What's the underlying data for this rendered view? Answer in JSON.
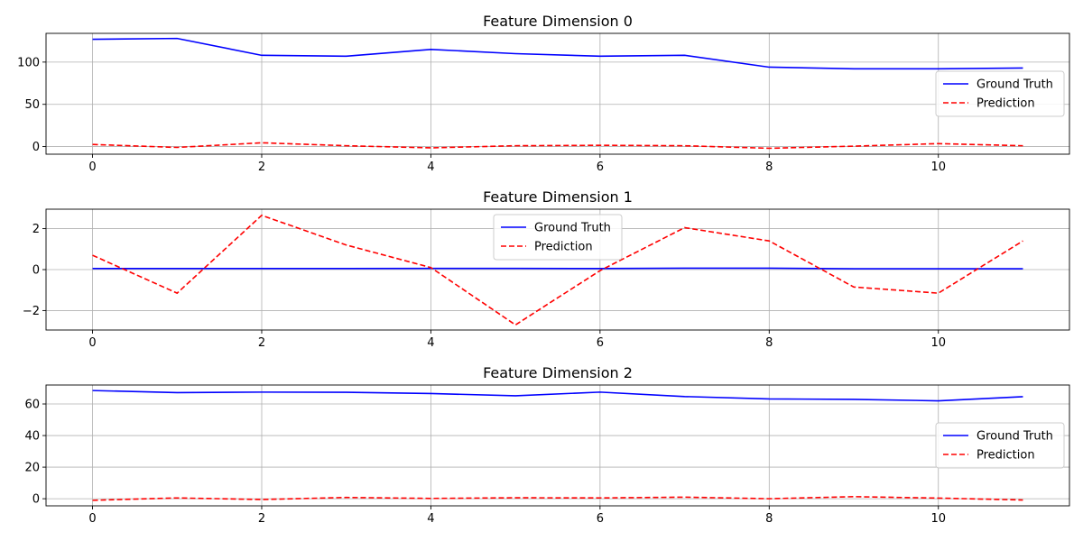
{
  "chart_data": [
    {
      "type": "line",
      "title": "Feature Dimension 0",
      "xlabel": "",
      "ylabel": "",
      "x": [
        0,
        1,
        2,
        3,
        4,
        5,
        6,
        7,
        8,
        9,
        10,
        11
      ],
      "xlim": [
        -0.55,
        11.55
      ],
      "ylim": [
        -9,
        134
      ],
      "xticks": [
        0,
        2,
        4,
        6,
        8,
        10
      ],
      "yticks": [
        0,
        50,
        100
      ],
      "grid": true,
      "legend_position": "right",
      "series": [
        {
          "name": "Ground Truth",
          "color": "#0000ff",
          "style": "solid",
          "values": [
            127,
            128,
            108,
            107,
            115,
            110,
            107,
            108,
            94,
            92,
            92,
            93
          ]
        },
        {
          "name": "Prediction",
          "color": "#ff0000",
          "style": "dashed",
          "values": [
            2.5,
            -1.0,
            4.5,
            1.0,
            -1.5,
            1.0,
            1.5,
            1.0,
            -2.0,
            0.5,
            3.5,
            1.0
          ]
        }
      ]
    },
    {
      "type": "line",
      "title": "Feature Dimension 1",
      "xlabel": "",
      "ylabel": "",
      "x": [
        0,
        1,
        2,
        3,
        4,
        5,
        6,
        7,
        8,
        9,
        10,
        11
      ],
      "xlim": [
        -0.55,
        11.55
      ],
      "ylim": [
        -2.95,
        2.95
      ],
      "xticks": [
        0,
        2,
        4,
        6,
        8,
        10
      ],
      "yticks": [
        -2,
        0,
        2
      ],
      "grid": true,
      "legend_position": "top-center",
      "series": [
        {
          "name": "Ground Truth",
          "color": "#0000ff",
          "style": "solid",
          "values": [
            0.05,
            0.05,
            0.05,
            0.05,
            0.06,
            0.06,
            0.05,
            0.07,
            0.07,
            0.04,
            0.04,
            0.04
          ]
        },
        {
          "name": "Prediction",
          "color": "#ff0000",
          "style": "dashed",
          "values": [
            0.7,
            -1.15,
            2.65,
            1.2,
            0.1,
            -2.7,
            -0.05,
            2.05,
            1.4,
            -0.85,
            -1.15,
            1.4
          ]
        }
      ]
    },
    {
      "type": "line",
      "title": "Feature Dimension 2",
      "xlabel": "",
      "ylabel": "",
      "x": [
        0,
        1,
        2,
        3,
        4,
        5,
        6,
        7,
        8,
        9,
        10,
        11
      ],
      "xlim": [
        -0.55,
        11.55
      ],
      "ylim": [
        -4.5,
        72
      ],
      "xticks": [
        0,
        2,
        4,
        6,
        8,
        10
      ],
      "yticks": [
        0,
        20,
        40,
        60
      ],
      "grid": true,
      "legend_position": "right",
      "series": [
        {
          "name": "Ground Truth",
          "color": "#0000ff",
          "style": "solid",
          "values": [
            68.5,
            67.2,
            67.5,
            67.4,
            66.6,
            65.2,
            67.5,
            64.7,
            63.2,
            62.9,
            62.0,
            64.6
          ]
        },
        {
          "name": "Prediction",
          "color": "#ff0000",
          "style": "dashed",
          "values": [
            -1.0,
            0.5,
            -0.5,
            0.8,
            0.2,
            0.6,
            0.5,
            1.0,
            0.0,
            1.3,
            0.4,
            -0.8
          ]
        }
      ]
    }
  ]
}
